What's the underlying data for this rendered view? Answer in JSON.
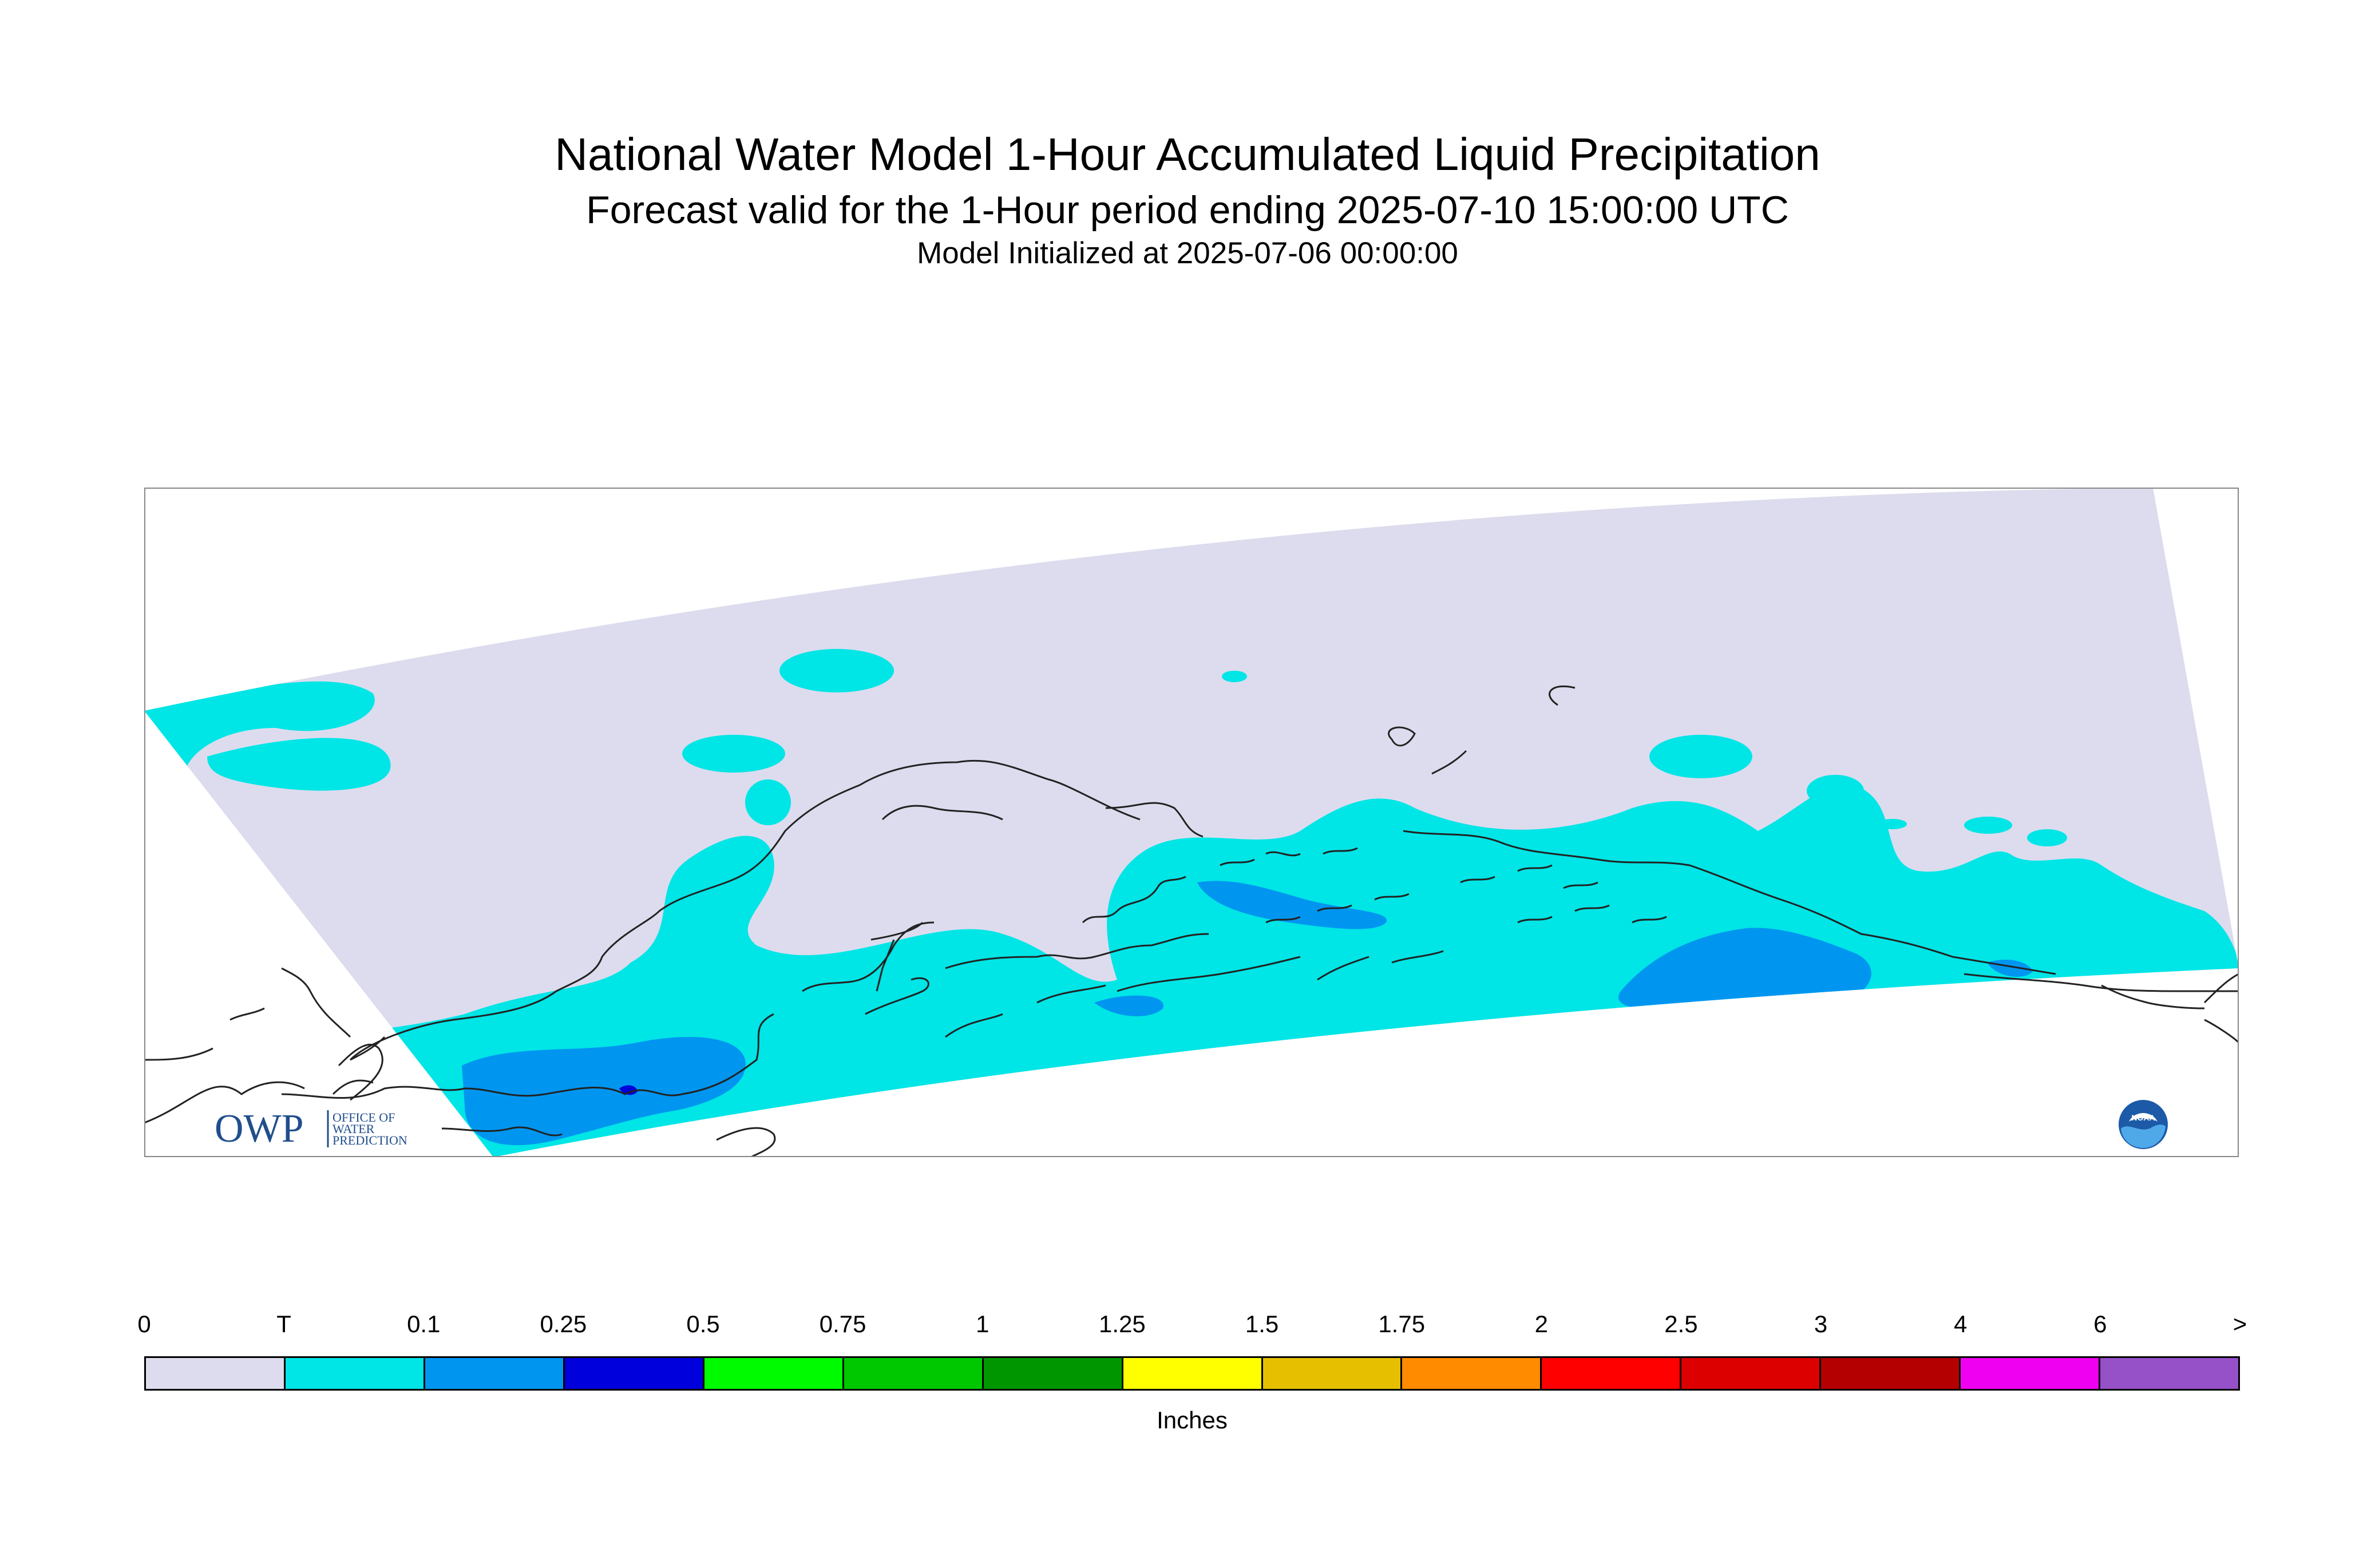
{
  "title": "National Water Model 1-Hour Accumulated Liquid Precipitation",
  "subtitle": "Forecast valid for the 1-Hour period ending 2025-07-10 15:00:00 UTC",
  "init_line": "Model Initialized at 2025-07-06 00:00:00",
  "map": {
    "region": "Southern Alaska",
    "colors": {
      "zero": "#dcdcee",
      "trace": "#00e5e6",
      "light": "#0096f0",
      "moderate": "#0000dc",
      "coast": "#222222",
      "frame": "#888888"
    }
  },
  "logos": {
    "owp_mark": "OWP",
    "owp_text": [
      "OFFICE OF",
      "WATER",
      "PREDICTION"
    ],
    "noaa_text": "NOAA"
  },
  "legend": {
    "ticks": [
      "0",
      "T",
      "0.1",
      "0.25",
      "0.5",
      "0.75",
      "1",
      "1.25",
      "1.5",
      "1.75",
      "2",
      "2.5",
      "3",
      "4",
      "6",
      ">"
    ],
    "colors": [
      "#dcdcee",
      "#00e5e6",
      "#0096f0",
      "#0000dc",
      "#00fa00",
      "#00c800",
      "#009600",
      "#ffff00",
      "#e6c000",
      "#ff8c00",
      "#ff0000",
      "#dc0000",
      "#b40000",
      "#f000f0",
      "#9650c8"
    ],
    "units": "Inches"
  }
}
